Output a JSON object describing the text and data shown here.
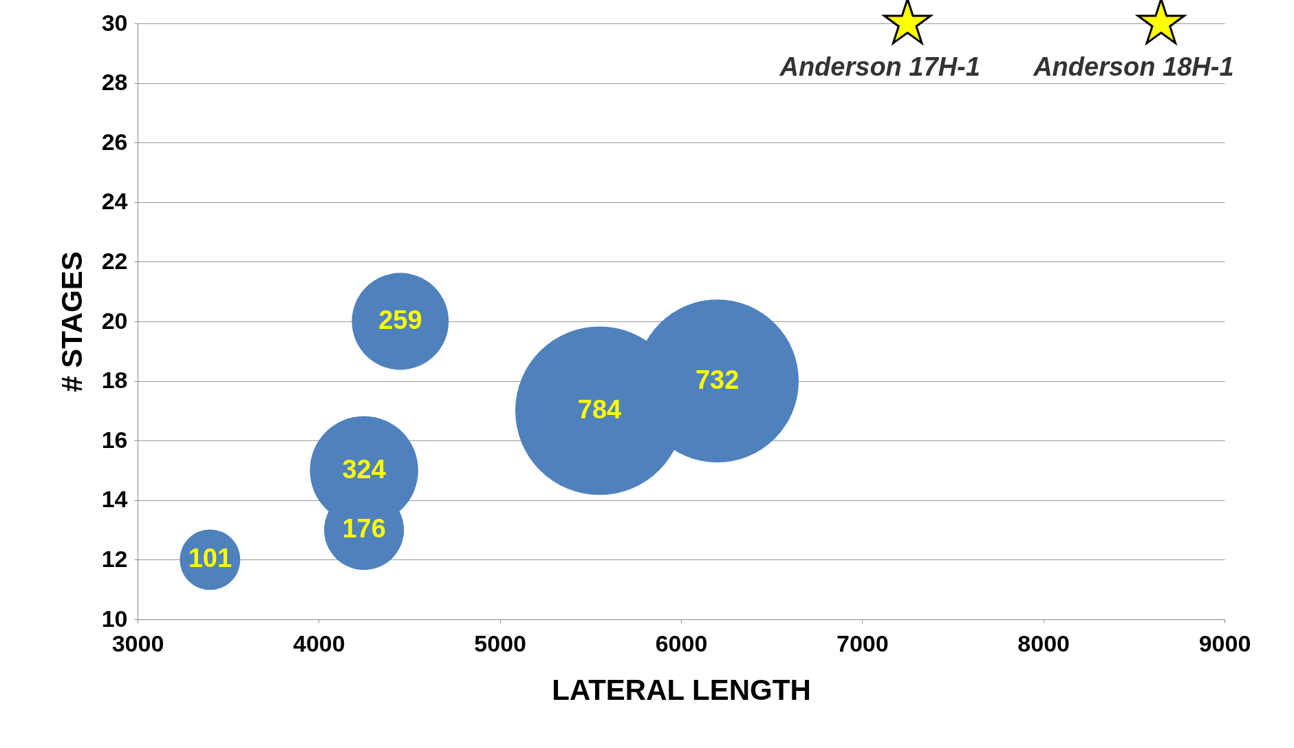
{
  "chart_data": {
    "type": "bubble",
    "xlabel": "LATERAL LENGTH",
    "ylabel": "# STAGES",
    "xlim": [
      3000,
      9000
    ],
    "xticks": [
      3000,
      4000,
      5000,
      6000,
      7000,
      8000,
      9000
    ],
    "ylim": [
      10,
      30
    ],
    "yticks": [
      10,
      12,
      14,
      16,
      18,
      20,
      22,
      24,
      26,
      28,
      30
    ],
    "grid": "y",
    "legend": false,
    "series": [
      {
        "color": "#4f81bd",
        "x": [
          3400,
          4250,
          4250,
          4450,
          5550,
          6200
        ],
        "values": [
          12,
          15,
          13,
          20,
          17,
          18
        ],
        "sizes": [
          101,
          324,
          176,
          259,
          784,
          732
        ],
        "value_labels": [
          "101",
          "324",
          "176",
          "259",
          "784",
          "732"
        ]
      },
      {
        "type": "scatter",
        "marker": "star",
        "color": "#ffff00",
        "x": [
          7250,
          8650
        ],
        "values": [
          30,
          30
        ]
      }
    ],
    "annotations": [
      {
        "text": "Anderson 17H-1",
        "x": 7250,
        "y": 30
      },
      {
        "text": "Anderson 18H-1",
        "x": 8650,
        "y": 30
      }
    ]
  }
}
